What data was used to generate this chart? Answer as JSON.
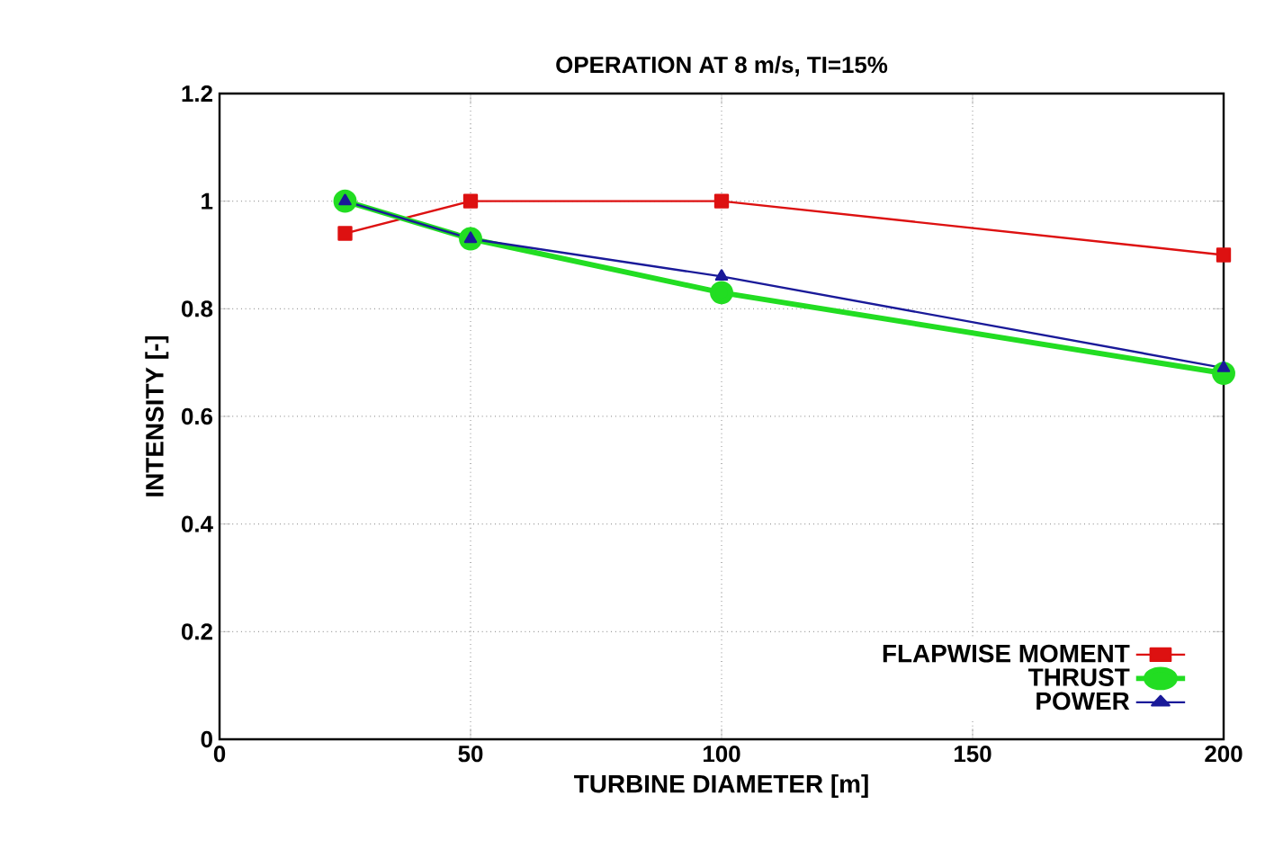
{
  "chart_data": {
    "type": "line",
    "title": "OPERATION AT 8 m/s, TI=15%",
    "xlabel": "TURBINE DIAMETER [m]",
    "ylabel": "INTENSITY [-]",
    "x": [
      25,
      50,
      100,
      200
    ],
    "series": [
      {
        "name": "FLAPWISE MOMENT",
        "color": "#dd1111",
        "marker": "square",
        "values": [
          0.94,
          1.0,
          1.0,
          0.9
        ]
      },
      {
        "name": "THRUST",
        "color": "#22dd22",
        "marker": "circle",
        "values": [
          1.0,
          0.93,
          0.83,
          0.68
        ]
      },
      {
        "name": "POWER",
        "color": "#1a1a99",
        "marker": "triangle",
        "values": [
          1.0,
          0.93,
          0.86,
          0.69
        ]
      }
    ],
    "xlim": [
      0,
      200
    ],
    "xticks": [
      0,
      50,
      100,
      150,
      200
    ],
    "ylim": [
      0,
      1.2
    ],
    "yticks": [
      0,
      0.2,
      0.4,
      0.6,
      0.8,
      1,
      1.2
    ],
    "grid": true,
    "legend": "bottom right",
    "line_style": "solid"
  }
}
